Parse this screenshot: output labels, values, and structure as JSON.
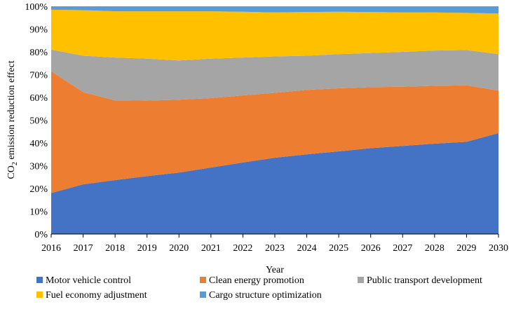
{
  "chart_data": {
    "type": "area",
    "stacked": true,
    "percent": true,
    "title": "",
    "xlabel": "Year",
    "ylabel_parts": [
      "CO",
      "2",
      " emission reduction effect"
    ],
    "x": [
      "2016",
      "2017",
      "2018",
      "2019",
      "2020",
      "2021",
      "2022",
      "2023",
      "2024",
      "2025",
      "2026",
      "2027",
      "2028",
      "2029",
      "2030"
    ],
    "ylim": [
      0,
      100
    ],
    "y_ticks": [
      "0%",
      "10%",
      "20%",
      "30%",
      "40%",
      "50%",
      "60%",
      "70%",
      "80%",
      "90%",
      "100%"
    ],
    "legend_position": "bottom",
    "series": [
      {
        "name": "Motor vehicle control",
        "color": "#4472C4",
        "values": [
          18,
          21.8,
          23.7,
          25.4,
          27,
          29.2,
          31.4,
          33.5,
          35,
          36.3,
          37.7,
          38.7,
          39.7,
          40.5,
          44.3
        ]
      },
      {
        "name": "Clean energy promotion",
        "color": "#ED7D31",
        "values": [
          53.5,
          40.5,
          35,
          33.2,
          32,
          30.5,
          29.5,
          28.5,
          28.3,
          27.7,
          26.8,
          26,
          25.4,
          24.8,
          18.7
        ]
      },
      {
        "name": "Public transport development",
        "color": "#A5A5A5",
        "values": [
          9.5,
          16,
          18.8,
          18.4,
          17.2,
          17.3,
          16.6,
          16,
          15,
          15,
          15,
          15.3,
          15.5,
          15.5,
          16
        ]
      },
      {
        "name": "Fuel economy adjustment",
        "color": "#FFC000",
        "values": [
          17.5,
          20,
          20.3,
          20.8,
          21.6,
          20.8,
          20.1,
          19.3,
          19.2,
          18.6,
          18,
          17.3,
          16.7,
          16.3,
          17.8
        ]
      },
      {
        "name": "Cargo structure optimization",
        "color": "#5B9BD5",
        "values": [
          1.5,
          1.7,
          2.2,
          2.2,
          2.2,
          2.2,
          2.4,
          2.7,
          2.5,
          2.4,
          2.5,
          2.7,
          2.7,
          2.9,
          3.2
        ]
      }
    ]
  }
}
